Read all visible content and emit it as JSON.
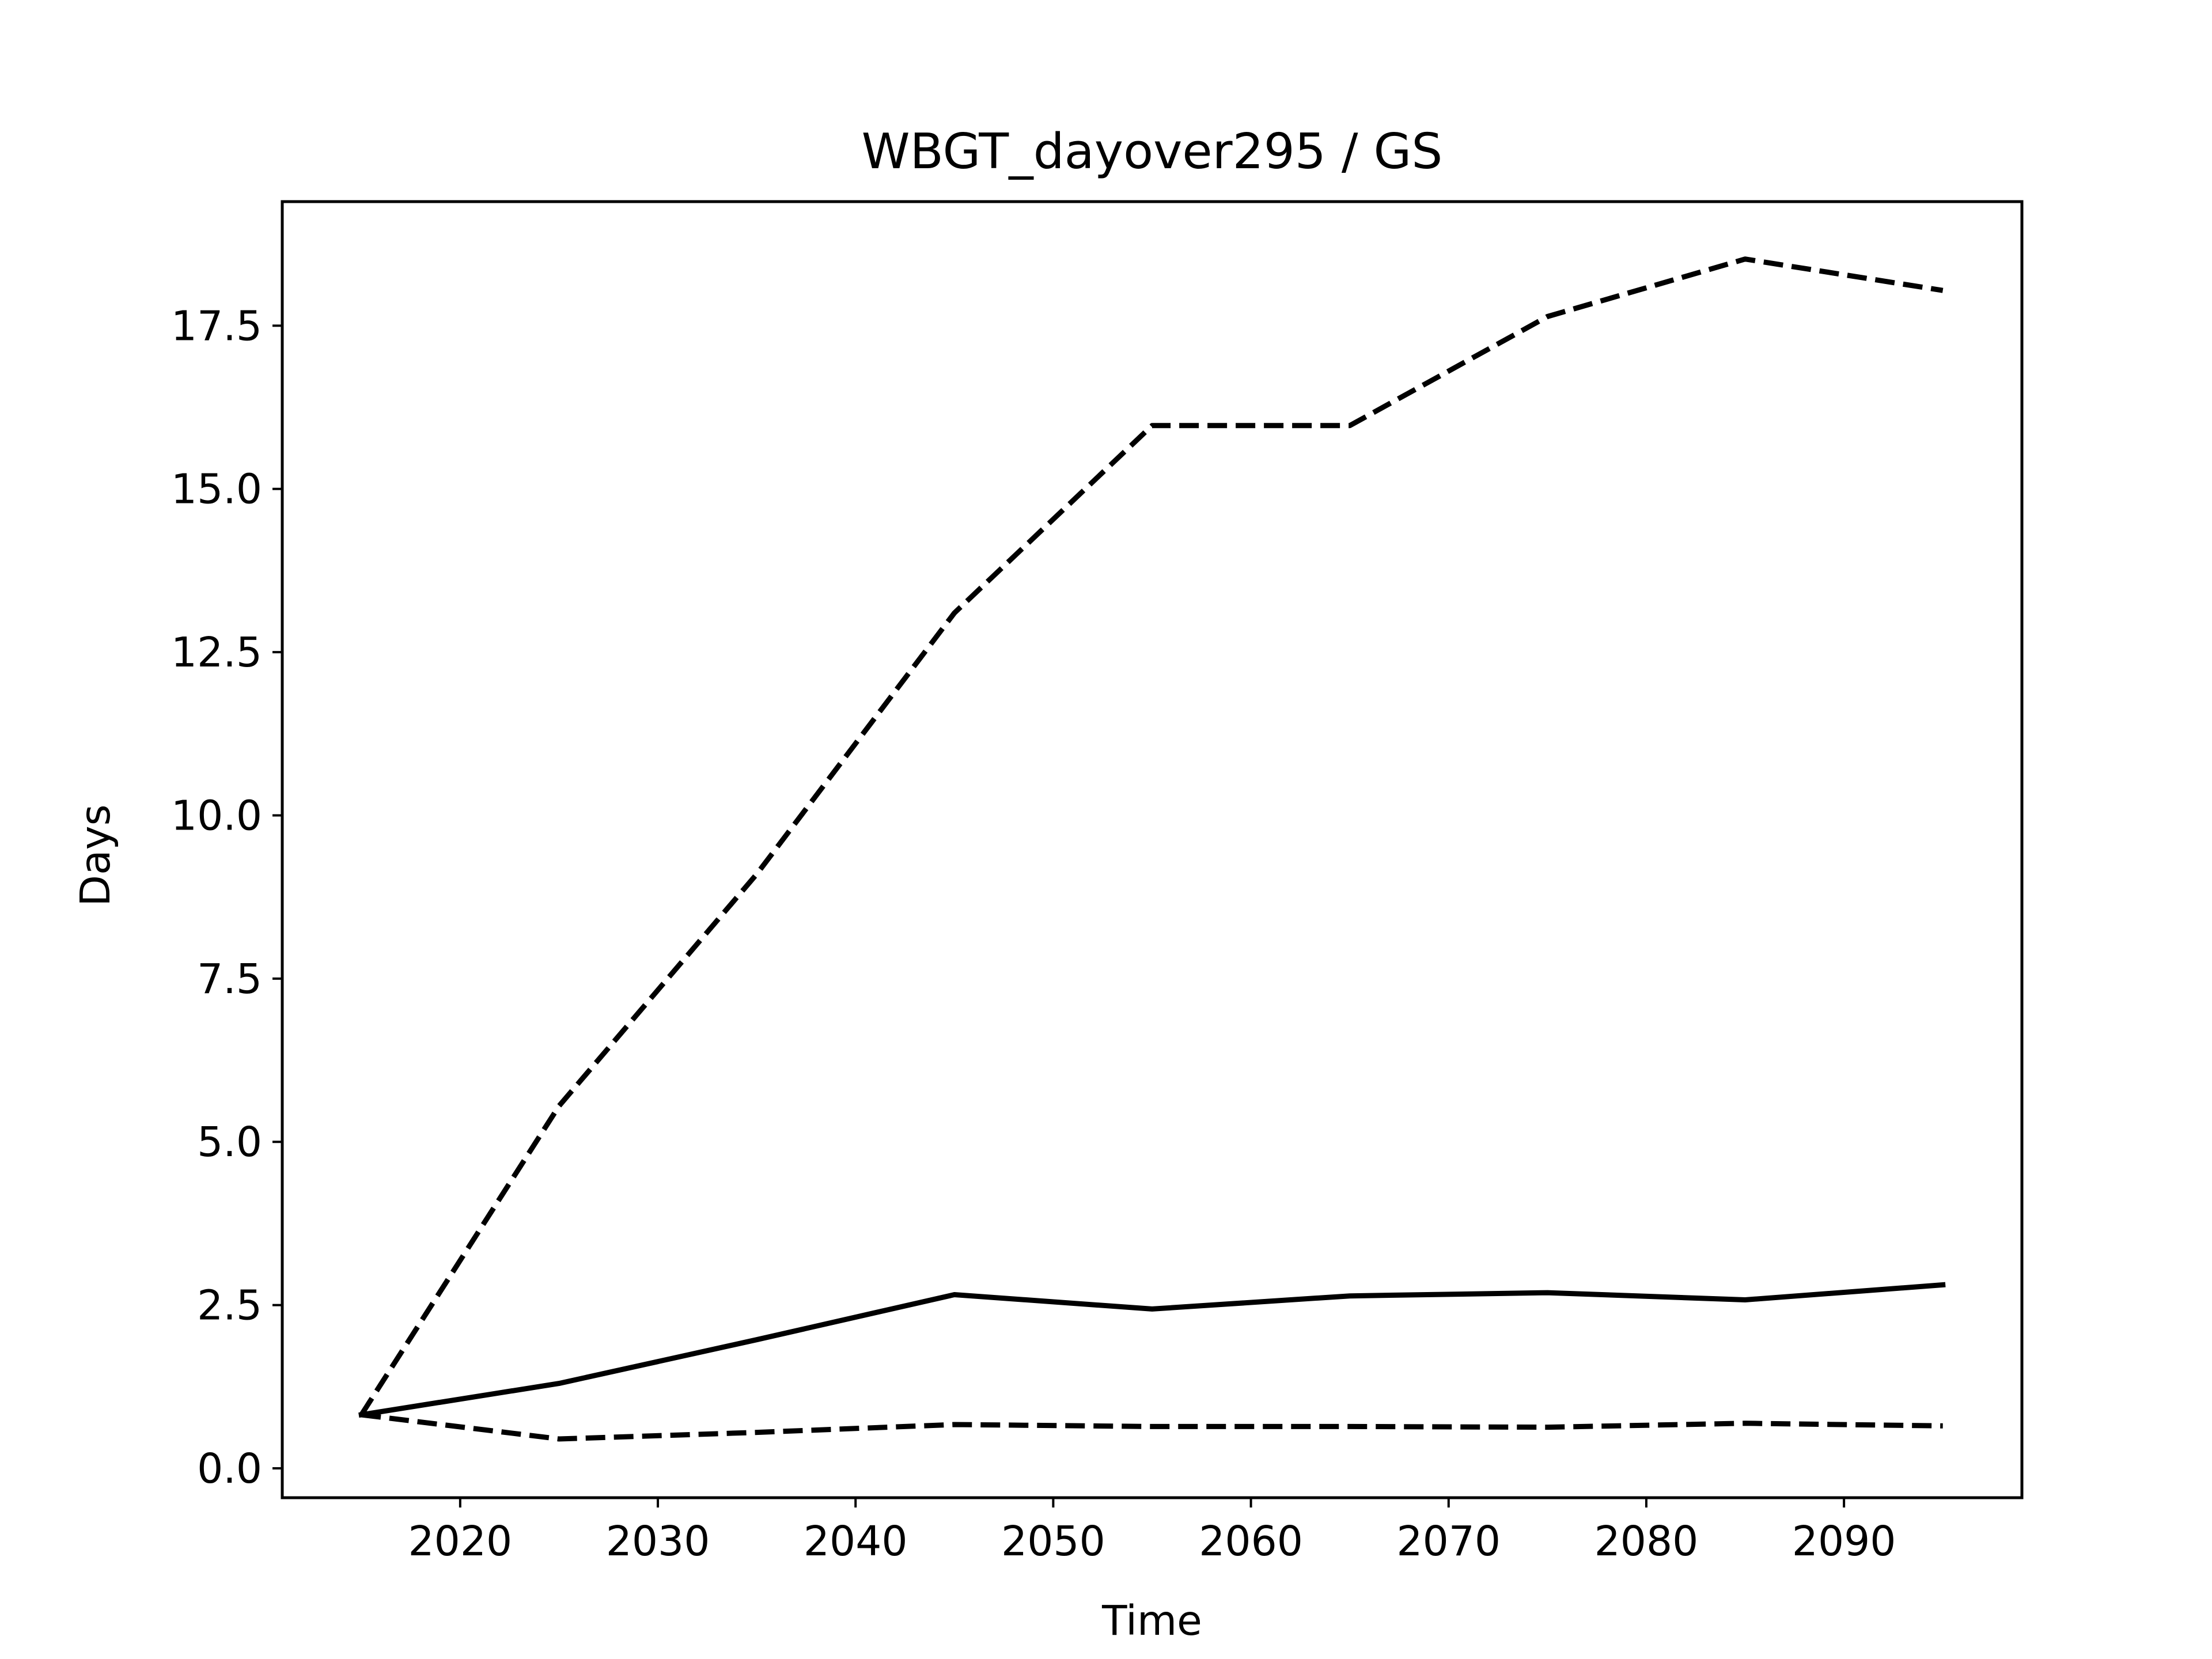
{
  "chart_data": {
    "type": "line",
    "title": "WBGT_dayover295 / GS",
    "xlabel": "Time",
    "ylabel": "Days",
    "xlim": [
      2011,
      2099
    ],
    "ylim": [
      -0.45,
      19.4
    ],
    "xticks": [
      2020,
      2030,
      2040,
      2050,
      2060,
      2070,
      2080,
      2090
    ],
    "yticks": [
      0.0,
      2.5,
      5.0,
      7.5,
      10.0,
      12.5,
      15.0,
      17.5
    ],
    "xtick_labels": [
      "2020",
      "2030",
      "2040",
      "2050",
      "2060",
      "2070",
      "2080",
      "2090"
    ],
    "ytick_labels": [
      "0.0",
      "2.5",
      "5.0",
      "7.5",
      "10.0",
      "12.5",
      "15.0",
      "17.5"
    ],
    "grid": false,
    "x": [
      2015,
      2025,
      2035,
      2045,
      2055,
      2065,
      2075,
      2085,
      2095
    ],
    "series": [
      {
        "style": "dashed",
        "color": "#000000",
        "values": [
          0.82,
          5.55,
          9.1,
          13.1,
          15.97,
          15.97,
          17.64,
          18.52,
          18.04
        ]
      },
      {
        "style": "solid",
        "color": "#000000",
        "values": [
          0.82,
          1.3,
          1.97,
          2.66,
          2.44,
          2.64,
          2.69,
          2.58,
          2.81
        ]
      },
      {
        "style": "dashed",
        "color": "#000000",
        "values": [
          0.82,
          0.45,
          0.55,
          0.67,
          0.64,
          0.64,
          0.63,
          0.69,
          0.65
        ]
      }
    ]
  }
}
